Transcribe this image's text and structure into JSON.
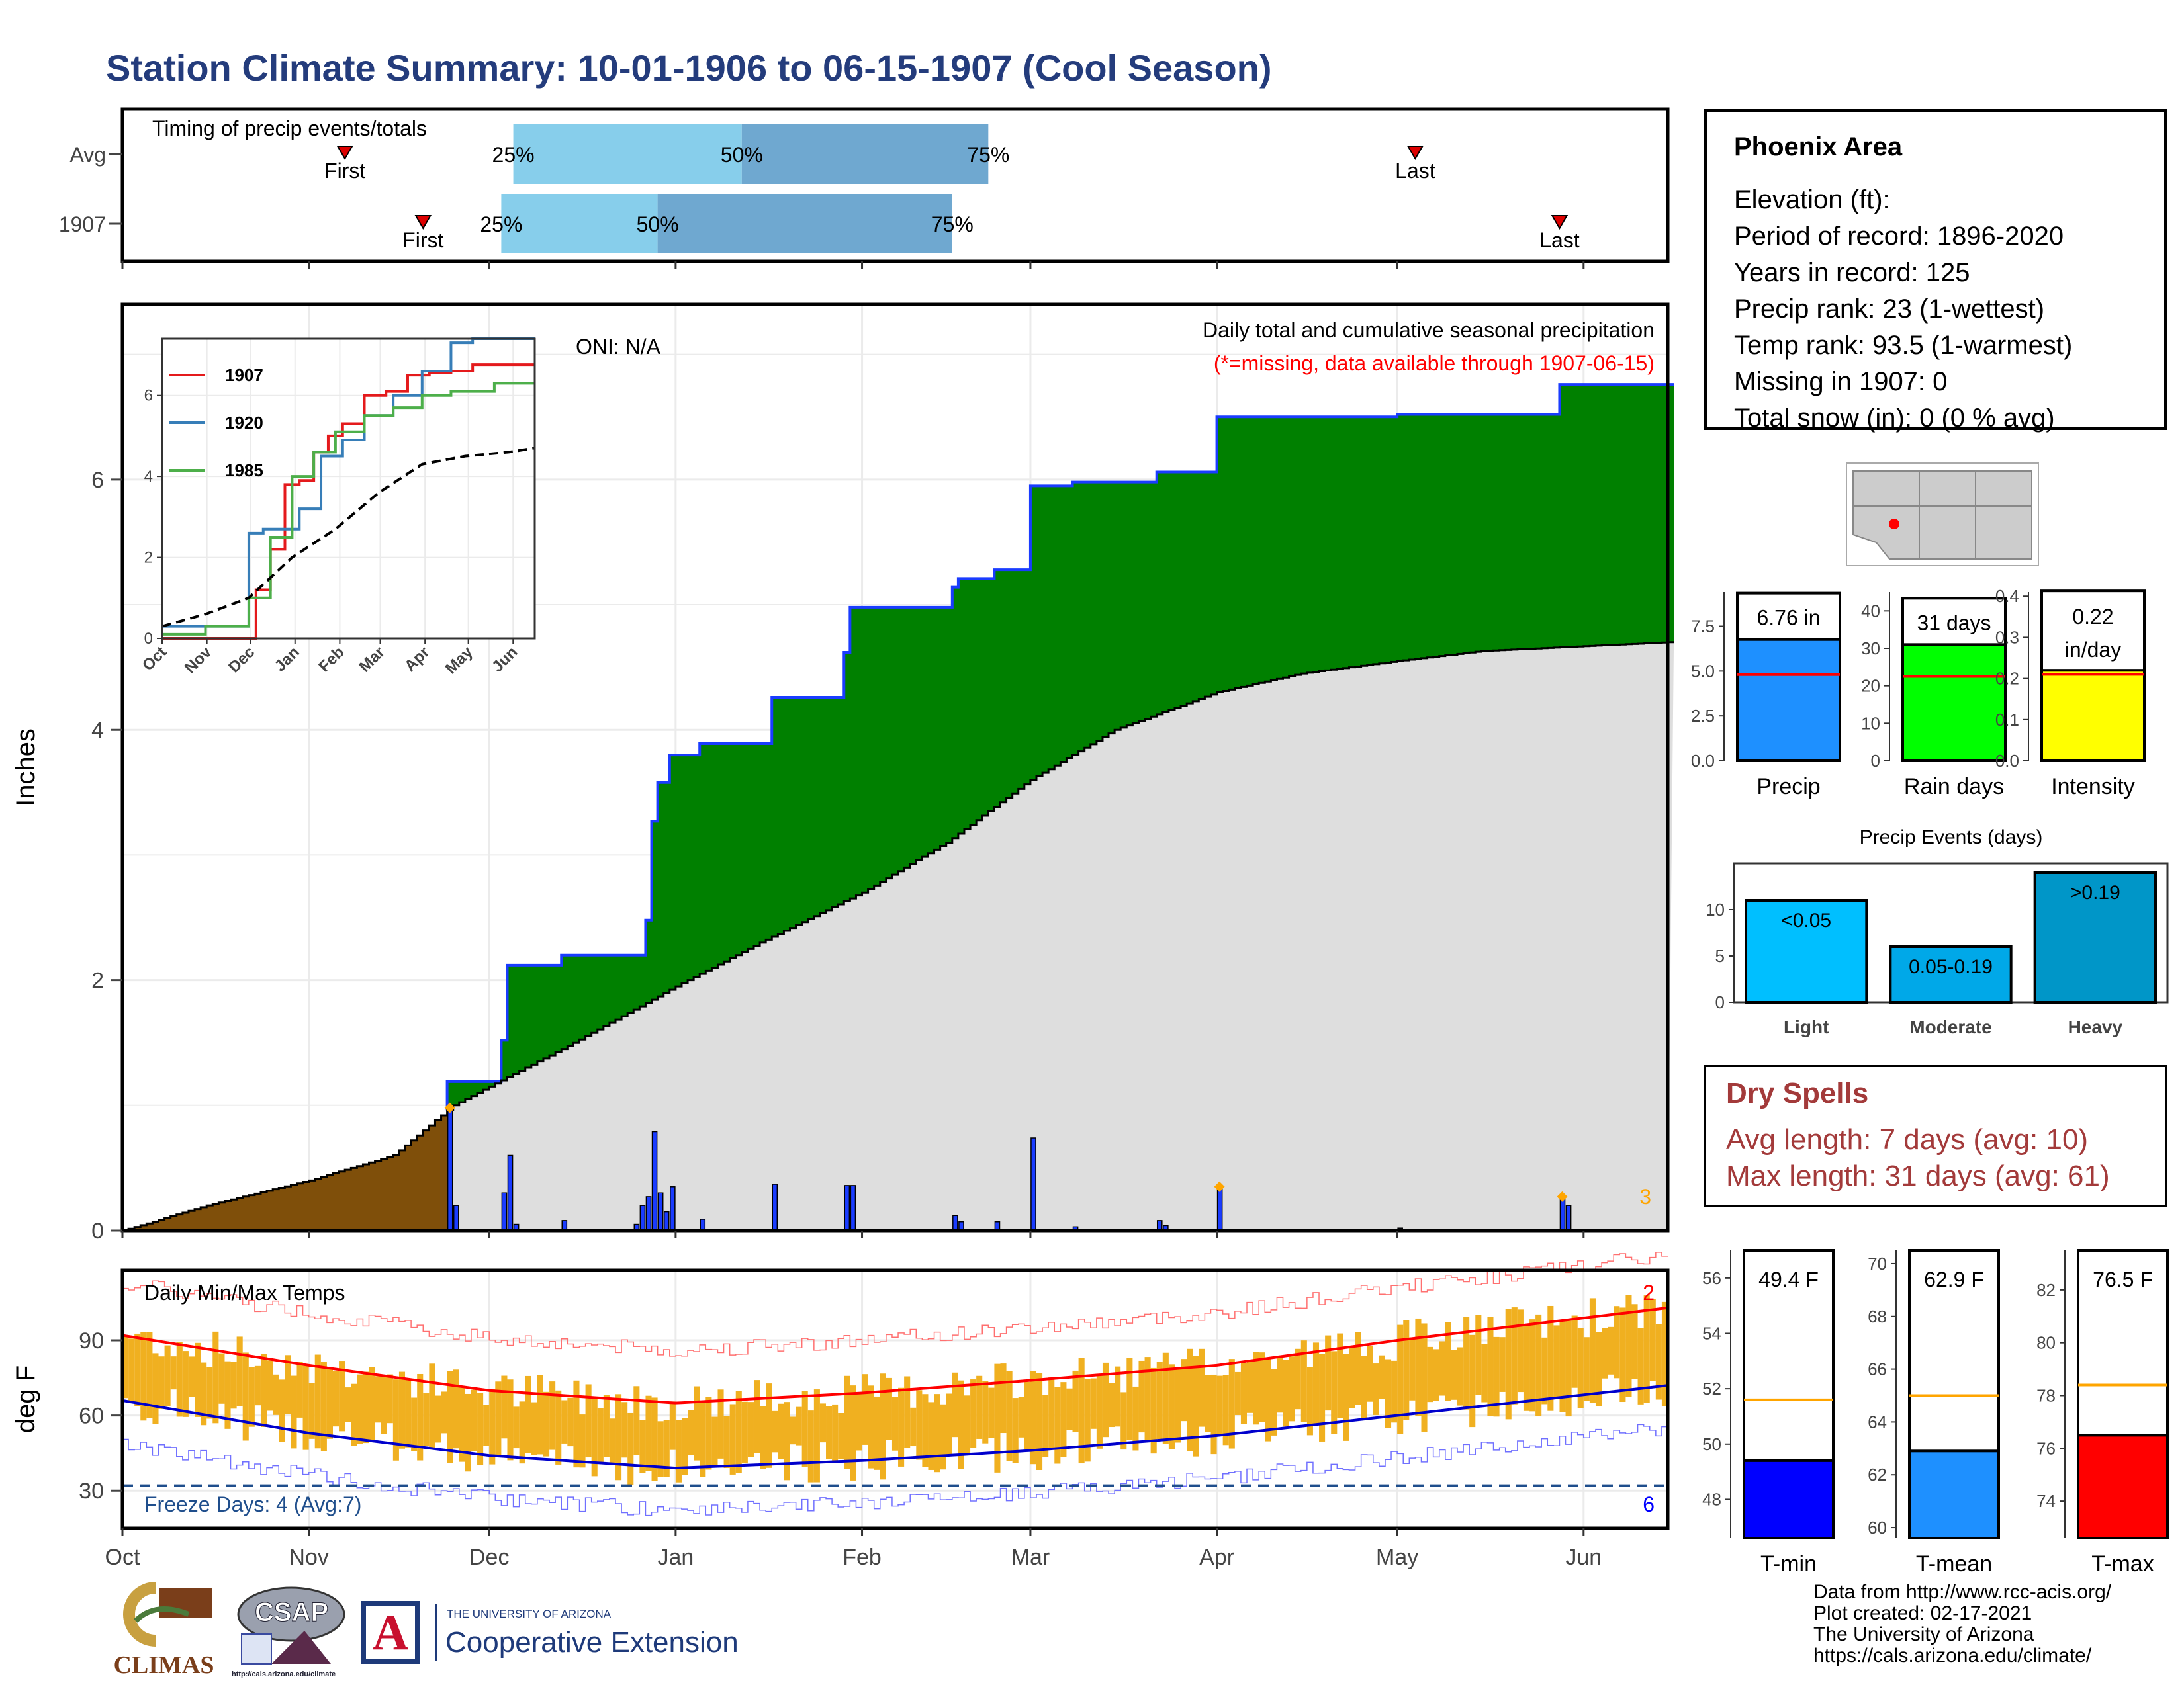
{
  "title": "Station Climate Summary: 10-01-1906 to 06-15-1907 (Cool Season)",
  "colors": {
    "title": "#243c7c",
    "cumulative_fill": "#008000",
    "early_fill": "#7f4f0a",
    "avg_fill": "#dedede",
    "daily_bar": "#1a3cff",
    "bar_light": "#87ceeb",
    "bar_dark": "#6fa8d0",
    "temp_bar": "#f0b020",
    "tmax_avg": "#ff0000",
    "tmin_avg": "#0000cc",
    "precip_bar": "#1e90ff",
    "raindays_bar": "#00ff00",
    "intensity_bar": "#ffff00",
    "light_bar": "#00bfff",
    "moderate_bar": "#00a8e8",
    "heavy_bar": "#0096c8",
    "tmin_bar": "#0000ff",
    "tmean_bar": "#1e90ff",
    "tmax_bar": "#ff0000",
    "dry_spell": "#a33a3a"
  },
  "timing": {
    "label": "Timing of precip events/totals",
    "rows": [
      {
        "name": "Avg",
        "first": "1906-11-07",
        "q25": "1906-12-05",
        "q50": "1907-01-12",
        "q75": "1907-02-22",
        "last": "1907-05-04"
      },
      {
        "name": "1907",
        "first": "1906-11-20",
        "q25": "1906-12-03",
        "q50": "1906-12-29",
        "q75": "1907-02-16",
        "last": "1907-05-28"
      }
    ],
    "first_label": "First",
    "last_label": "Last",
    "pct_labels": [
      "25%",
      "50%",
      "75%"
    ]
  },
  "precip_panel": {
    "y_label": "Inches",
    "y_ticks": [
      0,
      2,
      4,
      6
    ],
    "oni": "ONI: N/A",
    "note1": "Daily total and cumulative seasonal precipitation",
    "note2": "(*=missing, data available through 1907-06-15)",
    "count_label": "3"
  },
  "inset": {
    "x_ticks": [
      "Oct",
      "Nov",
      "Dec",
      "Jan",
      "Feb",
      "Mar",
      "Apr",
      "May",
      "Jun"
    ],
    "y_ticks": [
      0,
      2,
      4,
      6
    ],
    "legend": [
      {
        "name": "1907",
        "color": "#e41a1c"
      },
      {
        "name": "1920",
        "color": "#377eb8"
      },
      {
        "name": "1985",
        "color": "#4daf4a"
      }
    ]
  },
  "temp_panel": {
    "title": "Daily Min/Max Temps",
    "y_label": "deg F",
    "y_ticks": [
      30,
      60,
      90
    ],
    "freeze": "Freeze Days: 4 (Avg:7)",
    "count_top": "2",
    "count_bottom": "6"
  },
  "months": [
    "Oct",
    "Nov",
    "Dec",
    "Jan",
    "Feb",
    "Mar",
    "Apr",
    "May",
    "Jun"
  ],
  "info": {
    "station": "Phoenix Area",
    "lines": [
      "Elevation (ft):",
      "Period of record: 1896-2020",
      "Years in record: 125",
      "Precip rank: 23 (1-wettest)",
      "Temp rank: 93.5 (1-warmest)",
      "Missing in 1907: 0",
      "Total snow (in): 0 (0 % avg)"
    ]
  },
  "summary_bars": [
    {
      "label": "Precip",
      "value_label": "6.76 in",
      "value": 6.76,
      "avg": 4.8,
      "ymax": 9.4,
      "ticks": [
        "0.0",
        "2.5",
        "5.0",
        "7.5"
      ],
      "tick_vals": [
        0,
        2.5,
        5,
        7.5
      ]
    },
    {
      "label": "Rain days",
      "value_label": "31 days",
      "value": 31,
      "avg": 22.5,
      "ymax": 45,
      "ticks": [
        "0",
        "10",
        "20",
        "30",
        "40"
      ],
      "tick_vals": [
        0,
        10,
        20,
        30,
        40
      ]
    },
    {
      "label": "Intensity",
      "value_label": "0.22",
      "value_label2": "in/day",
      "value": 0.22,
      "avg": 0.21,
      "ymax": 0.41,
      "ticks": [
        "0.0",
        "0.1",
        "0.2",
        "0.3",
        "0.4"
      ],
      "tick_vals": [
        0,
        0.1,
        0.2,
        0.3,
        0.4
      ]
    }
  ],
  "events": {
    "title": "Precip Events (days)",
    "ticks": [
      0,
      5,
      10
    ],
    "categories": [
      "Light",
      "Moderate",
      "Heavy"
    ],
    "values": [
      11,
      6,
      14
    ],
    "labels": [
      "<0.05",
      "0.05-0.19",
      ">0.19"
    ]
  },
  "dry_spells": {
    "title": "Dry Spells",
    "avg": "Avg length: 7 days (avg: 10)",
    "max": "Max length: 31 days (avg: 61)"
  },
  "temp_bars": [
    {
      "label": "T-min",
      "value_label": "49.4 F",
      "value": 49.4,
      "avg": 51.6,
      "ymin": 46.6,
      "ymax": 57,
      "ticks": [
        48,
        50,
        52,
        54,
        56
      ]
    },
    {
      "label": "T-mean",
      "value_label": "62.9 F",
      "value": 62.9,
      "avg": 65.0,
      "ymin": 59.6,
      "ymax": 70.5,
      "ticks": [
        60,
        62,
        64,
        66,
        68,
        70
      ]
    },
    {
      "label": "T-max",
      "value_label": "76.5 F",
      "value": 76.5,
      "avg": 78.4,
      "ymin": 72.6,
      "ymax": 83.5,
      "ticks": [
        74,
        76,
        78,
        80,
        82
      ]
    }
  ],
  "credits": [
    "Data from http://www.rcc-acis.org/",
    "Plot created: 02-17-2021",
    "The University of Arizona",
    "https://cals.arizona.edu/climate/"
  ],
  "logos": {
    "climas": "CLIMAS",
    "csap": "CSAP",
    "csap_url": "http://cals.arizona.edu/climate",
    "ua_small": "THE UNIVERSITY OF ARIZONA",
    "ua_big": "Cooperative Extension"
  },
  "chart_data": [
    {
      "type": "area",
      "title": "Daily total and cumulative seasonal precipitation",
      "ylabel": "Inches",
      "ylim": [
        0,
        7.4
      ],
      "x_range": [
        "1906-10-01",
        "1907-06-15"
      ],
      "cumulative_steps": [
        [
          "1906-11-24",
          1.19
        ],
        [
          "1906-12-03",
          1.52
        ],
        [
          "1906-12-04",
          2.12
        ],
        [
          "1906-12-13",
          2.2
        ],
        [
          "1906-12-27",
          2.48
        ],
        [
          "1906-12-28",
          3.27
        ],
        [
          "1906-12-29",
          3.58
        ],
        [
          "1906-12-31",
          3.8
        ],
        [
          "1907-01-05",
          3.89
        ],
        [
          "1907-01-17",
          4.26
        ],
        [
          "1907-01-29",
          4.62
        ],
        [
          "1907-01-30",
          4.98
        ],
        [
          "1907-02-16",
          5.14
        ],
        [
          "1907-02-17",
          5.21
        ],
        [
          "1907-02-23",
          5.28
        ],
        [
          "1907-03-01",
          5.95
        ],
        [
          "1907-03-08",
          5.98
        ],
        [
          "1907-03-22",
          6.06
        ],
        [
          "1907-04-01",
          6.5
        ],
        [
          "1907-05-01",
          6.52
        ],
        [
          "1907-05-28",
          6.76
        ]
      ],
      "daily_bars": [
        [
          "1906-11-24",
          0.96
        ],
        [
          "1906-11-25",
          0.2
        ],
        [
          "1906-12-03",
          0.3
        ],
        [
          "1906-12-04",
          0.6
        ],
        [
          "1906-12-05",
          0.05
        ],
        [
          "1906-12-13",
          0.08
        ],
        [
          "1906-12-25",
          0.05
        ],
        [
          "1906-12-26",
          0.2
        ],
        [
          "1906-12-27",
          0.27
        ],
        [
          "1906-12-28",
          0.79
        ],
        [
          "1906-12-29",
          0.3
        ],
        [
          "1906-12-30",
          0.15
        ],
        [
          "1906-12-31",
          0.35
        ],
        [
          "1907-01-05",
          0.09
        ],
        [
          "1907-01-17",
          0.37
        ],
        [
          "1907-01-29",
          0.36
        ],
        [
          "1907-01-30",
          0.36
        ],
        [
          "1907-02-16",
          0.12
        ],
        [
          "1907-02-17",
          0.07
        ],
        [
          "1907-02-23",
          0.07
        ],
        [
          "1907-03-01",
          0.74
        ],
        [
          "1907-03-08",
          0.03
        ],
        [
          "1907-03-22",
          0.08
        ],
        [
          "1907-03-23",
          0.04
        ],
        [
          "1907-04-01",
          0.35
        ],
        [
          "1907-05-01",
          0.02
        ],
        [
          "1907-05-28",
          0.26
        ],
        [
          "1907-05-29",
          0.2
        ]
      ],
      "average_curve": [
        [
          "1906-10-01",
          0.0
        ],
        [
          "1906-10-15",
          0.2
        ],
        [
          "1906-11-01",
          0.4
        ],
        [
          "1906-11-15",
          0.6
        ],
        [
          "1906-11-25",
          1.0
        ],
        [
          "1906-12-15",
          1.5
        ],
        [
          "1907-01-01",
          1.95
        ],
        [
          "1907-01-15",
          2.3
        ],
        [
          "1907-02-01",
          2.7
        ],
        [
          "1907-02-15",
          3.1
        ],
        [
          "1907-03-01",
          3.6
        ],
        [
          "1907-03-15",
          4.0
        ],
        [
          "1907-04-01",
          4.3
        ],
        [
          "1907-04-15",
          4.45
        ],
        [
          "1907-05-01",
          4.55
        ],
        [
          "1907-05-15",
          4.63
        ],
        [
          "1907-06-15",
          4.7
        ]
      ]
    },
    {
      "type": "line",
      "ylim": [
        0,
        7.4
      ],
      "series": [
        {
          "name": "1907",
          "x": [
            0,
            55,
            65,
            75,
            85,
            95,
            105,
            115,
            125,
            140,
            155,
            170,
            185,
            200,
            215,
            240,
            258
          ],
          "y": [
            0,
            0,
            1.2,
            2.2,
            3.8,
            3.9,
            4.6,
            5.0,
            5.3,
            6.0,
            6.1,
            6.5,
            6.55,
            6.6,
            6.76,
            6.76,
            6.76
          ]
        },
        {
          "name": "1920",
          "x": [
            0,
            30,
            60,
            70,
            95,
            110,
            125,
            140,
            160,
            180,
            200,
            215,
            258
          ],
          "y": [
            0.3,
            0.3,
            2.6,
            2.7,
            3.2,
            4.5,
            4.9,
            5.5,
            6.0,
            6.6,
            7.3,
            7.4,
            7.4
          ]
        },
        {
          "name": "1985",
          "x": [
            0,
            30,
            60,
            75,
            90,
            105,
            120,
            140,
            160,
            180,
            200,
            230,
            258
          ],
          "y": [
            0.1,
            0.3,
            1.0,
            2.5,
            4.0,
            4.6,
            5.1,
            5.5,
            5.7,
            6.0,
            6.1,
            6.3,
            6.3
          ]
        },
        {
          "name": "average",
          "x": [
            0,
            30,
            60,
            90,
            120,
            150,
            180,
            210,
            240,
            258
          ],
          "y": [
            0.3,
            0.6,
            1.0,
            2.0,
            2.7,
            3.6,
            4.3,
            4.5,
            4.6,
            4.7
          ]
        }
      ]
    },
    {
      "type": "bar",
      "title": "Daily Min/Max Temps",
      "ylabel": "deg F",
      "ylim": [
        15,
        118
      ],
      "avg_tmax": [
        [
          "1906-10-01",
          92
        ],
        [
          "1906-11-01",
          80
        ],
        [
          "1906-12-01",
          70
        ],
        [
          "1907-01-01",
          65
        ],
        [
          "1907-02-01",
          69
        ],
        [
          "1907-03-01",
          74
        ],
        [
          "1907-04-01",
          80
        ],
        [
          "1907-05-01",
          90
        ],
        [
          "1907-06-15",
          103
        ]
      ],
      "avg_tmin": [
        [
          "1906-10-01",
          66
        ],
        [
          "1906-11-01",
          53
        ],
        [
          "1906-12-01",
          44
        ],
        [
          "1907-01-01",
          39
        ],
        [
          "1907-02-01",
          42
        ],
        [
          "1907-03-01",
          46
        ],
        [
          "1907-04-01",
          52
        ],
        [
          "1907-05-01",
          60
        ],
        [
          "1907-06-15",
          72
        ]
      ],
      "freeze_line": 32
    }
  ]
}
